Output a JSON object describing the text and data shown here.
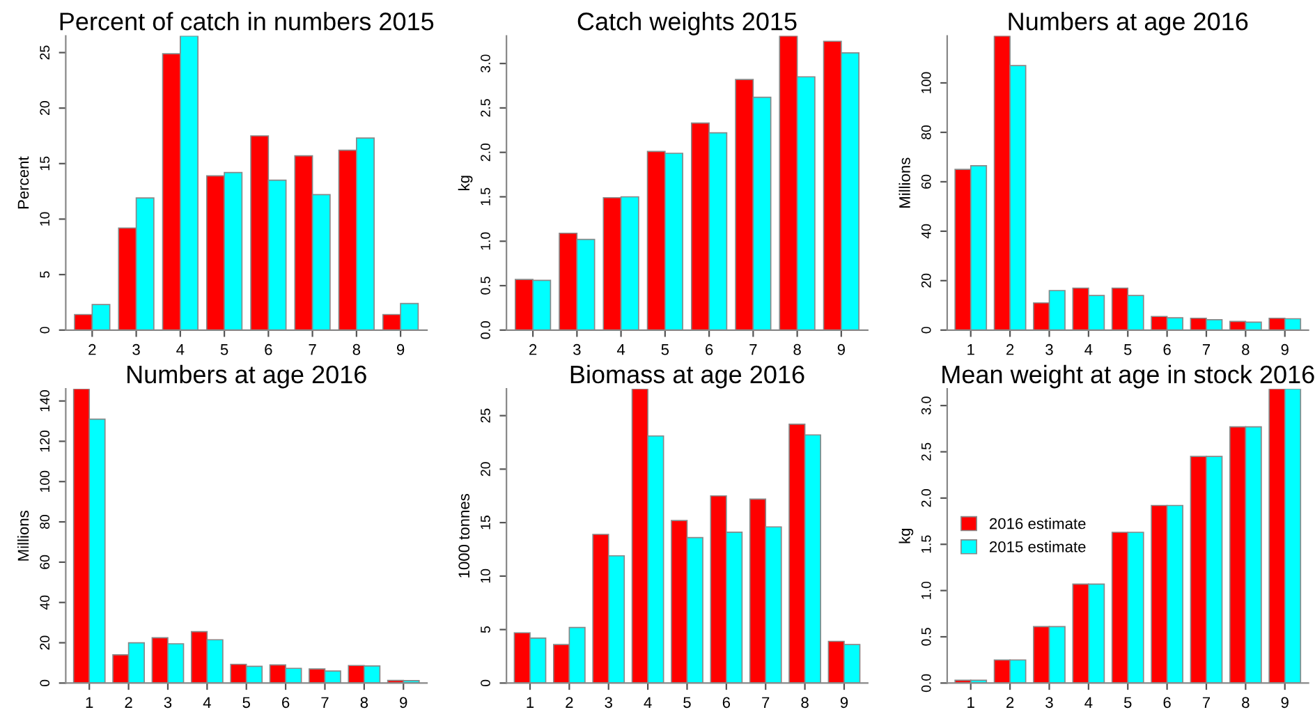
{
  "chart_data": [
    {
      "type": "bar",
      "title": "Percent of catch in numbers 2015",
      "ylabel": "Percent",
      "categories": [
        "2",
        "3",
        "4",
        "5",
        "6",
        "7",
        "8",
        "9"
      ],
      "series": [
        {
          "color": "#ff0000",
          "values": [
            1.4,
            9.2,
            24.9,
            13.9,
            17.5,
            15.7,
            16.2,
            1.4
          ]
        },
        {
          "color": "#00ffff",
          "values": [
            2.3,
            11.9,
            26.5,
            14.2,
            13.5,
            12.2,
            17.3,
            2.4
          ]
        }
      ],
      "ylim": [
        0,
        26.5
      ],
      "yticks": [
        0,
        5,
        10,
        15,
        20,
        25
      ],
      "legend": false
    },
    {
      "type": "bar",
      "title": "Catch weights 2015",
      "ylabel": "kg",
      "categories": [
        "2",
        "3",
        "4",
        "5",
        "6",
        "7",
        "8",
        "9"
      ],
      "series": [
        {
          "color": "#ff0000",
          "values": [
            0.57,
            1.09,
            1.49,
            2.01,
            2.33,
            2.82,
            3.31,
            3.25
          ]
        },
        {
          "color": "#00ffff",
          "values": [
            0.56,
            1.02,
            1.5,
            1.99,
            2.22,
            2.62,
            2.85,
            3.12
          ]
        }
      ],
      "ylim": [
        0,
        3.31
      ],
      "yticks": [
        {
          "value": 0,
          "label": "0.0"
        },
        {
          "value": 0.5,
          "label": "0.5"
        },
        {
          "value": 1,
          "label": "1.0"
        },
        {
          "value": 1.5,
          "label": "1.5"
        },
        {
          "value": 2,
          "label": "2.0"
        },
        {
          "value": 2.5,
          "label": "2.5"
        },
        {
          "value": 3,
          "label": "3.0"
        }
      ],
      "legend": false
    },
    {
      "type": "bar",
      "title": "Numbers at age 2016",
      "ylabel": "Millions",
      "categories": [
        "1",
        "2",
        "3",
        "4",
        "5",
        "6",
        "7",
        "8",
        "9"
      ],
      "series": [
        {
          "color": "#ff0000",
          "values": [
            65,
            119,
            11,
            17,
            17,
            5.5,
            4.8,
            3.5,
            4.8
          ]
        },
        {
          "color": "#00ffff",
          "values": [
            66.5,
            107,
            16,
            14,
            14,
            5,
            4.2,
            3.2,
            4.6
          ]
        }
      ],
      "ylim": [
        0,
        119
      ],
      "yticks": [
        0,
        20,
        40,
        60,
        80,
        100
      ],
      "legend": false
    },
    {
      "type": "bar",
      "title": "Numbers at age 2016",
      "ylabel": "Millions",
      "categories": [
        "1",
        "2",
        "3",
        "4",
        "5",
        "6",
        "7",
        "8",
        "9"
      ],
      "series": [
        {
          "color": "#ff0000",
          "values": [
            146,
            14,
            22.5,
            25.5,
            9.3,
            9,
            7,
            8.7,
            1.3
          ]
        },
        {
          "color": "#00ffff",
          "values": [
            131,
            20,
            19.5,
            21.5,
            8.3,
            7.3,
            6,
            8.5,
            1.2
          ]
        }
      ],
      "ylim": [
        0,
        146
      ],
      "yticks": [
        0,
        20,
        40,
        60,
        80,
        100,
        120,
        140
      ],
      "legend": false
    },
    {
      "type": "bar",
      "title": "Biomass at age 2016",
      "ylabel": "1000 tonnes",
      "categories": [
        "1",
        "2",
        "3",
        "4",
        "5",
        "6",
        "7",
        "8",
        "9"
      ],
      "series": [
        {
          "color": "#ff0000",
          "values": [
            4.7,
            3.6,
            13.9,
            27.5,
            15.2,
            17.5,
            17.2,
            24.2,
            3.9
          ]
        },
        {
          "color": "#00ffff",
          "values": [
            4.2,
            5.2,
            11.9,
            23.1,
            13.6,
            14.1,
            14.6,
            23.2,
            3.6
          ]
        }
      ],
      "ylim": [
        0,
        27.5
      ],
      "yticks": [
        0,
        5,
        10,
        15,
        20,
        25
      ],
      "legend": false
    },
    {
      "type": "bar",
      "title": "Mean weight at age in stock 2016",
      "ylabel": "kg",
      "categories": [
        "1",
        "2",
        "3",
        "4",
        "5",
        "6",
        "7",
        "8",
        "9"
      ],
      "series": [
        {
          "name": "2016 estimate",
          "color": "#ff0000",
          "values": [
            0.03,
            0.25,
            0.61,
            1.07,
            1.63,
            1.92,
            2.45,
            2.77,
            3.18
          ]
        },
        {
          "name": "2015 estimate",
          "color": "#00ffff",
          "values": [
            0.03,
            0.25,
            0.61,
            1.07,
            1.63,
            1.92,
            2.45,
            2.77,
            3.18
          ]
        }
      ],
      "ylim": [
        0,
        3.18
      ],
      "yticks": [
        {
          "value": 0,
          "label": "0.0"
        },
        {
          "value": 0.5,
          "label": "0.5"
        },
        {
          "value": 1,
          "label": "1.0"
        },
        {
          "value": 1.5,
          "label": "1.5"
        },
        {
          "value": 2,
          "label": "2.0"
        },
        {
          "value": 2.5,
          "label": "2.5"
        },
        {
          "value": 3,
          "label": "3.0"
        }
      ],
      "legend": "center left"
    }
  ]
}
